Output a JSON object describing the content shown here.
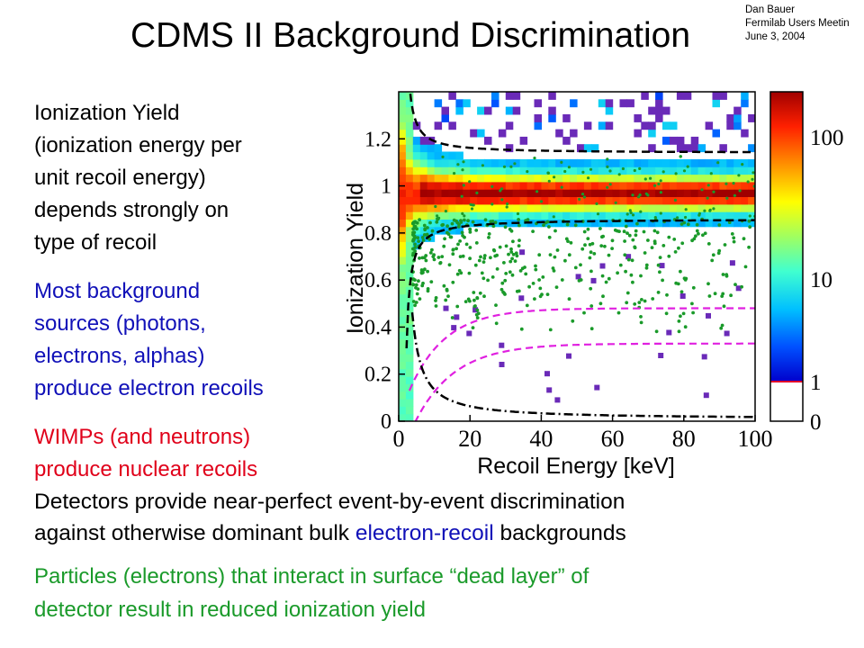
{
  "slide": {
    "title": "CDMS II Background Discrimination",
    "credit": [
      "Dan Bauer",
      "Fermilab Users Meetin",
      "June 3, 2004"
    ],
    "para1": [
      "Ionization Yield",
      "(ionization energy per",
      "unit recoil energy)",
      "depends strongly on",
      "type of recoil"
    ],
    "para2": [
      "Most background",
      "sources (photons,",
      "electrons, alphas)",
      "produce electron recoils"
    ],
    "para3": [
      "WIMPs (and neutrons)",
      "produce nuclear recoils"
    ],
    "para4": {
      "line1": "Detectors provide near-perfect event-by-event discrimination",
      "line2_pre": "against otherwise dominant bulk ",
      "line2_colored": "electron-recoil",
      "line2_post": " backgrounds"
    },
    "para5": [
      "Particles (electrons) that interact in surface “dead layer” of",
      "detector result in reduced ionization yield"
    ],
    "colors": {
      "blue_text": "#1010b8",
      "red_text": "#e0001a",
      "green_text": "#1a9a2a"
    }
  },
  "chart_data": {
    "type": "heatmap",
    "xlabel": "Recoil Energy [keV]",
    "ylabel": "Ionization Yield",
    "xlim": [
      0,
      100
    ],
    "ylim": [
      0,
      1.4
    ],
    "x_ticks": [
      "0",
      "20",
      "40",
      "60",
      "80",
      "100"
    ],
    "y_ticks": [
      "0",
      "0.2",
      "0.4",
      "0.6",
      "0.8",
      "1",
      "1.2"
    ],
    "colorbar": {
      "ticks": [
        "0",
        "1",
        "10",
        "100"
      ],
      "scale": "log"
    },
    "electron_recoil_band": {
      "center_yield": 0.97,
      "upper_bound_yield": 1.14,
      "lower_bound_yield": 0.86
    },
    "nuclear_recoil_band": {
      "upper_yield_at_100keV": 0.48,
      "lower_yield_at_100keV": 0.33
    },
    "threshold_curve": {
      "yield_at_100keV": 0.01
    },
    "series": [
      {
        "values": "electron recoil calibration density (photons)",
        "color": "#d00000"
      },
      {
        "values": "surface events scatter",
        "color": "#1a9a2a"
      }
    ],
    "grid": false
  }
}
